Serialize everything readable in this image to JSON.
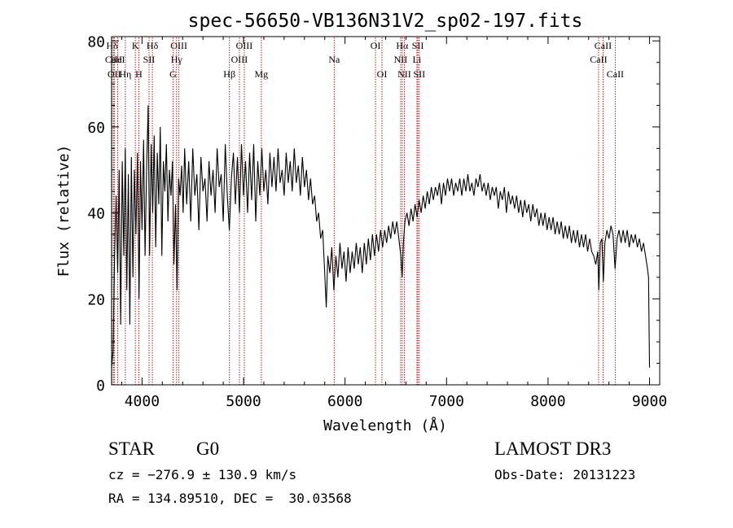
{
  "chart_data": {
    "type": "line",
    "title": "spec-56650-VB136N31V2_sp02-197.fits",
    "xlabel": "Wavelength (Å)",
    "ylabel": "Flux (relative)",
    "xlim": [
      3700,
      9100
    ],
    "ylim": [
      0,
      81
    ],
    "xticks": [
      4000,
      5000,
      6000,
      7000,
      8000,
      9000
    ],
    "xtick_labels": [
      "4000",
      "5000",
      "6000",
      "7000",
      "8000",
      "9000"
    ],
    "yticks": [
      0,
      20,
      40,
      60,
      80
    ],
    "ytick_labels": [
      "0",
      "20",
      "40",
      "60",
      "80"
    ],
    "grid": false,
    "line_color": "#000000",
    "marker_color": "#b22222",
    "series": [
      {
        "name": "flux",
        "points": [
          [
            3700,
            4
          ],
          [
            3715,
            8
          ],
          [
            3730,
            30
          ],
          [
            3745,
            44
          ],
          [
            3760,
            26
          ],
          [
            3775,
            50
          ],
          [
            3790,
            14
          ],
          [
            3805,
            52
          ],
          [
            3820,
            30
          ],
          [
            3835,
            55
          ],
          [
            3850,
            22
          ],
          [
            3865,
            49
          ],
          [
            3880,
            14
          ],
          [
            3895,
            53
          ],
          [
            3910,
            25
          ],
          [
            3925,
            50
          ],
          [
            3940,
            35
          ],
          [
            3955,
            54
          ],
          [
            3970,
            20
          ],
          [
            3985,
            52
          ],
          [
            4000,
            36
          ],
          [
            4015,
            57
          ],
          [
            4030,
            30
          ],
          [
            4045,
            50
          ],
          [
            4060,
            65
          ],
          [
            4075,
            30
          ],
          [
            4090,
            56
          ],
          [
            4105,
            40
          ],
          [
            4120,
            58
          ],
          [
            4135,
            32
          ],
          [
            4150,
            54
          ],
          [
            4165,
            42
          ],
          [
            4180,
            60
          ],
          [
            4195,
            30
          ],
          [
            4210,
            52
          ],
          [
            4225,
            45
          ],
          [
            4240,
            56
          ],
          [
            4255,
            38
          ],
          [
            4270,
            50
          ],
          [
            4285,
            44
          ],
          [
            4300,
            52
          ],
          [
            4315,
            28
          ],
          [
            4330,
            42
          ],
          [
            4345,
            22
          ],
          [
            4360,
            48
          ],
          [
            4375,
            44
          ],
          [
            4390,
            51
          ],
          [
            4405,
            40
          ],
          [
            4420,
            55
          ],
          [
            4440,
            42
          ],
          [
            4460,
            52
          ],
          [
            4480,
            38
          ],
          [
            4500,
            55
          ],
          [
            4520,
            44
          ],
          [
            4540,
            49
          ],
          [
            4560,
            36
          ],
          [
            4580,
            53
          ],
          [
            4600,
            45
          ],
          [
            4620,
            48
          ],
          [
            4640,
            38
          ],
          [
            4660,
            52
          ],
          [
            4680,
            44
          ],
          [
            4700,
            50
          ],
          [
            4720,
            40
          ],
          [
            4740,
            55
          ],
          [
            4760,
            46
          ],
          [
            4780,
            49
          ],
          [
            4800,
            38
          ],
          [
            4820,
            56
          ],
          [
            4840,
            44
          ],
          [
            4860,
            36
          ],
          [
            4880,
            48
          ],
          [
            4900,
            54
          ],
          [
            4920,
            42
          ],
          [
            4940,
            53
          ],
          [
            4960,
            40
          ],
          [
            4980,
            56
          ],
          [
            5000,
            44
          ],
          [
            5020,
            52
          ],
          [
            5040,
            40
          ],
          [
            5060,
            54
          ],
          [
            5080,
            43
          ],
          [
            5100,
            56
          ],
          [
            5120,
            38
          ],
          [
            5140,
            52
          ],
          [
            5160,
            44
          ],
          [
            5180,
            55
          ],
          [
            5200,
            45
          ],
          [
            5220,
            50
          ],
          [
            5240,
            42
          ],
          [
            5260,
            54
          ],
          [
            5280,
            46
          ],
          [
            5300,
            53
          ],
          [
            5320,
            45
          ],
          [
            5340,
            55
          ],
          [
            5360,
            47
          ],
          [
            5380,
            50
          ],
          [
            5400,
            44
          ],
          [
            5420,
            54
          ],
          [
            5440,
            47
          ],
          [
            5460,
            52
          ],
          [
            5480,
            45
          ],
          [
            5500,
            55
          ],
          [
            5520,
            47
          ],
          [
            5540,
            51
          ],
          [
            5560,
            44
          ],
          [
            5580,
            53
          ],
          [
            5600,
            46
          ],
          [
            5620,
            50
          ],
          [
            5640,
            43
          ],
          [
            5660,
            48
          ],
          [
            5680,
            42
          ],
          [
            5700,
            44
          ],
          [
            5720,
            38
          ],
          [
            5740,
            40
          ],
          [
            5760,
            34
          ],
          [
            5780,
            36
          ],
          [
            5800,
            26
          ],
          [
            5815,
            18
          ],
          [
            5830,
            30
          ],
          [
            5850,
            26
          ],
          [
            5870,
            32
          ],
          [
            5890,
            22
          ],
          [
            5910,
            30
          ],
          [
            5930,
            25
          ],
          [
            5950,
            33
          ],
          [
            5970,
            27
          ],
          [
            5990,
            31
          ],
          [
            6010,
            24
          ],
          [
            6030,
            32
          ],
          [
            6050,
            26
          ],
          [
            6070,
            31
          ],
          [
            6090,
            27
          ],
          [
            6110,
            33
          ],
          [
            6130,
            28
          ],
          [
            6150,
            32
          ],
          [
            6170,
            26
          ],
          [
            6190,
            33
          ],
          [
            6210,
            28
          ],
          [
            6230,
            34
          ],
          [
            6250,
            29
          ],
          [
            6270,
            35
          ],
          [
            6290,
            30
          ],
          [
            6310,
            35
          ],
          [
            6330,
            31
          ],
          [
            6350,
            36
          ],
          [
            6370,
            32
          ],
          [
            6390,
            36
          ],
          [
            6410,
            33
          ],
          [
            6430,
            37
          ],
          [
            6450,
            34
          ],
          [
            6470,
            38
          ],
          [
            6490,
            35
          ],
          [
            6510,
            38
          ],
          [
            6530,
            34
          ],
          [
            6550,
            30
          ],
          [
            6563,
            25
          ],
          [
            6575,
            33
          ],
          [
            6590,
            38
          ],
          [
            6610,
            40
          ],
          [
            6630,
            37
          ],
          [
            6650,
            41
          ],
          [
            6670,
            38
          ],
          [
            6690,
            42
          ],
          [
            6710,
            39
          ],
          [
            6730,
            43
          ],
          [
            6750,
            40
          ],
          [
            6770,
            44
          ],
          [
            6790,
            41
          ],
          [
            6810,
            45
          ],
          [
            6830,
            42
          ],
          [
            6850,
            46
          ],
          [
            6870,
            43
          ],
          [
            6890,
            46
          ],
          [
            6910,
            44
          ],
          [
            6930,
            47
          ],
          [
            6950,
            42
          ],
          [
            6970,
            47
          ],
          [
            6990,
            44
          ],
          [
            7010,
            48
          ],
          [
            7030,
            45
          ],
          [
            7050,
            48
          ],
          [
            7070,
            44
          ],
          [
            7090,
            47
          ],
          [
            7110,
            45
          ],
          [
            7130,
            48
          ],
          [
            7150,
            44
          ],
          [
            7170,
            48
          ],
          [
            7190,
            45
          ],
          [
            7210,
            49
          ],
          [
            7230,
            45
          ],
          [
            7250,
            47
          ],
          [
            7270,
            44
          ],
          [
            7290,
            48
          ],
          [
            7310,
            46
          ],
          [
            7330,
            49
          ],
          [
            7350,
            45
          ],
          [
            7370,
            47
          ],
          [
            7390,
            44
          ],
          [
            7410,
            47
          ],
          [
            7430,
            43
          ],
          [
            7450,
            46
          ],
          [
            7470,
            44
          ],
          [
            7490,
            46
          ],
          [
            7510,
            41
          ],
          [
            7530,
            45
          ],
          [
            7550,
            43
          ],
          [
            7570,
            46
          ],
          [
            7590,
            40
          ],
          [
            7610,
            45
          ],
          [
            7630,
            42
          ],
          [
            7650,
            44
          ],
          [
            7670,
            41
          ],
          [
            7690,
            44
          ],
          [
            7710,
            40
          ],
          [
            7730,
            43
          ],
          [
            7750,
            39
          ],
          [
            7770,
            43
          ],
          [
            7790,
            40
          ],
          [
            7810,
            42
          ],
          [
            7830,
            38
          ],
          [
            7850,
            42
          ],
          [
            7870,
            39
          ],
          [
            7890,
            41
          ],
          [
            7910,
            37
          ],
          [
            7930,
            40
          ],
          [
            7950,
            37
          ],
          [
            7970,
            40
          ],
          [
            7990,
            36
          ],
          [
            8010,
            39
          ],
          [
            8030,
            36
          ],
          [
            8050,
            39
          ],
          [
            8070,
            35
          ],
          [
            8090,
            38
          ],
          [
            8110,
            35
          ],
          [
            8130,
            38
          ],
          [
            8150,
            34
          ],
          [
            8170,
            37
          ],
          [
            8190,
            34
          ],
          [
            8210,
            37
          ],
          [
            8230,
            33
          ],
          [
            8250,
            36
          ],
          [
            8270,
            33
          ],
          [
            8290,
            36
          ],
          [
            8310,
            32
          ],
          [
            8330,
            35
          ],
          [
            8350,
            32
          ],
          [
            8370,
            35
          ],
          [
            8390,
            31
          ],
          [
            8410,
            34
          ],
          [
            8430,
            31
          ],
          [
            8450,
            30
          ],
          [
            8470,
            28
          ],
          [
            8490,
            31
          ],
          [
            8500,
            22
          ],
          [
            8515,
            33
          ],
          [
            8530,
            34
          ],
          [
            8545,
            24
          ],
          [
            8560,
            33
          ],
          [
            8580,
            36
          ],
          [
            8600,
            34
          ],
          [
            8620,
            37
          ],
          [
            8640,
            35
          ],
          [
            8660,
            27
          ],
          [
            8680,
            34
          ],
          [
            8700,
            36
          ],
          [
            8720,
            33
          ],
          [
            8740,
            36
          ],
          [
            8760,
            33
          ],
          [
            8780,
            36
          ],
          [
            8800,
            32
          ],
          [
            8820,
            35
          ],
          [
            8840,
            33
          ],
          [
            8860,
            35
          ],
          [
            8880,
            32
          ],
          [
            8900,
            34
          ],
          [
            8920,
            31
          ],
          [
            8940,
            33
          ],
          [
            8960,
            30
          ],
          [
            8980,
            27
          ],
          [
            8990,
            25
          ],
          [
            9000,
            4
          ]
        ]
      }
    ],
    "line_markers": [
      {
        "label": "Hδ",
        "wavelength": 3705,
        "row": 1
      },
      {
        "label": "CaII",
        "wavelength": 3720,
        "row": 2
      },
      {
        "label": "OII",
        "wavelength": 3727,
        "row": 3
      },
      {
        "label": "HeI",
        "wavelength": 3760,
        "row": 2
      },
      {
        "label": "Hη",
        "wavelength": 3835,
        "row": 3
      },
      {
        "label": "K",
        "wavelength": 3934,
        "row": 1
      },
      {
        "label": "SII",
        "wavelength": 4069,
        "row": 2
      },
      {
        "label": "H",
        "wavelength": 3968,
        "row": 3
      },
      {
        "label": "Hδ",
        "wavelength": 4102,
        "row": 1
      },
      {
        "label": "OIII",
        "wavelength": 4363,
        "row": 1
      },
      {
        "label": "Hγ",
        "wavelength": 4340,
        "row": 2
      },
      {
        "label": "G",
        "wavelength": 4305,
        "row": 3
      },
      {
        "label": "Hβ",
        "wavelength": 4861,
        "row": 3
      },
      {
        "label": "OIII",
        "wavelength": 5007,
        "row": 1
      },
      {
        "label": "OIII",
        "wavelength": 4959,
        "row": 2
      },
      {
        "label": "Mg",
        "wavelength": 5175,
        "row": 3
      },
      {
        "label": "Na",
        "wavelength": 5893,
        "row": 2
      },
      {
        "label": "OI",
        "wavelength": 6300,
        "row": 1
      },
      {
        "label": "OI",
        "wavelength": 6364,
        "row": 3
      },
      {
        "label": "Hα",
        "wavelength": 6563,
        "row": 1
      },
      {
        "label": "NII",
        "wavelength": 6548,
        "row": 2
      },
      {
        "label": "NII",
        "wavelength": 6584,
        "row": 3
      },
      {
        "label": "SII",
        "wavelength": 6717,
        "row": 1
      },
      {
        "label": "Li",
        "wavelength": 6708,
        "row": 2
      },
      {
        "label": "SII",
        "wavelength": 6731,
        "row": 3
      },
      {
        "label": "CaII",
        "wavelength": 8542,
        "row": 1
      },
      {
        "label": "CaII",
        "wavelength": 8498,
        "row": 2
      },
      {
        "label": "CaII",
        "wavelength": 8662,
        "row": 3
      }
    ]
  },
  "info": {
    "object_class": "STAR",
    "subclass": "G0",
    "cz": "cz = −276.9 ± 130.9 km/s",
    "coords": "RA = 134.89510, DEC =  30.03568",
    "survey": "LAMOST DR3",
    "obs_date": "Obs-Date: 20131223"
  }
}
